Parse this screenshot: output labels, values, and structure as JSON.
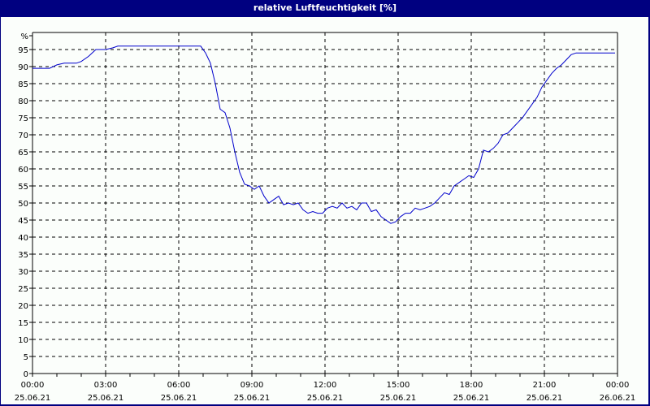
{
  "window": {
    "title": "relative Luftfeuchtigkeit [%]"
  },
  "colors": {
    "frame": "#000080",
    "background": "#fbfefb",
    "line": "#0000cc",
    "grid": "#000000"
  },
  "chart_data": {
    "type": "line",
    "title": "relative Luftfeuchtigkeit [%]",
    "xlabel": "",
    "ylabel": "%",
    "ylim": [
      0,
      100
    ],
    "xlim_hours": [
      0,
      24
    ],
    "grid": true,
    "y_ticks": [
      "0",
      "5",
      "10",
      "15",
      "20",
      "25",
      "30",
      "35",
      "40",
      "45",
      "50",
      "55",
      "60",
      "65",
      "70",
      "75",
      "80",
      "85",
      "90",
      "95",
      "%"
    ],
    "x_ticks": [
      {
        "time": "00:00",
        "date": "25.06.21"
      },
      {
        "time": "03:00",
        "date": "25.06.21"
      },
      {
        "time": "06:00",
        "date": "25.06.21"
      },
      {
        "time": "09:00",
        "date": "25.06.21"
      },
      {
        "time": "12:00",
        "date": "25.06.21"
      },
      {
        "time": "15:00",
        "date": "25.06.21"
      },
      {
        "time": "18:00",
        "date": "25.06.21"
      },
      {
        "time": "21:00",
        "date": "25.06.21"
      },
      {
        "time": "00:00",
        "date": "26.06.21"
      }
    ],
    "series": [
      {
        "name": "relative Luftfeuchtigkeit",
        "x_hours": [
          0,
          0.7,
          1.0,
          1.3,
          1.8,
          2.0,
          2.3,
          2.6,
          3.0,
          3.3,
          3.5,
          4.5,
          5.5,
          6.0,
          6.5,
          6.9,
          7.1,
          7.3,
          7.5,
          7.7,
          7.9,
          8.1,
          8.3,
          8.5,
          8.7,
          8.9,
          9.1,
          9.3,
          9.5,
          9.7,
          9.9,
          10.1,
          10.3,
          10.5,
          10.7,
          10.9,
          11.1,
          11.3,
          11.5,
          11.7,
          11.9,
          12.1,
          12.3,
          12.5,
          12.7,
          12.9,
          13.1,
          13.3,
          13.5,
          13.7,
          13.9,
          14.1,
          14.3,
          14.5,
          14.7,
          14.9,
          15.1,
          15.3,
          15.5,
          15.7,
          15.9,
          16.1,
          16.3,
          16.5,
          16.7,
          16.9,
          17.1,
          17.3,
          17.5,
          17.7,
          17.9,
          18.1,
          18.3,
          18.5,
          18.7,
          18.9,
          19.1,
          19.3,
          19.5,
          19.7,
          19.9,
          20.1,
          20.3,
          20.5,
          20.7,
          20.9,
          21.1,
          21.3,
          21.5,
          21.7,
          21.9,
          22.1,
          22.3,
          22.5,
          22.7,
          22.9,
          23.1,
          23.3,
          23.5,
          23.7,
          23.9
        ],
        "values": [
          89.5,
          89.5,
          90.5,
          91,
          91,
          91.5,
          93,
          95,
          95,
          95.5,
          96,
          96,
          96,
          96,
          96,
          96,
          94,
          91,
          85,
          77.5,
          76.5,
          72,
          65,
          59,
          55.5,
          55,
          54,
          55,
          52,
          50,
          51,
          52,
          49.5,
          50,
          49.5,
          50,
          48,
          47,
          47.5,
          47,
          47,
          48.5,
          49,
          48.5,
          50,
          48.5,
          49,
          48,
          50,
          50,
          47.5,
          48,
          46,
          45,
          44,
          44.5,
          46,
          47,
          47,
          48.5,
          48,
          48.5,
          49,
          50,
          51.5,
          53,
          52.5,
          55,
          56,
          57,
          58,
          57.5,
          60,
          65.5,
          65,
          66,
          67.5,
          70,
          70.5,
          72,
          73.5,
          75,
          77,
          79,
          81,
          84,
          86,
          88,
          89.5,
          90.5,
          92,
          93.5,
          94,
          94,
          94,
          94,
          94,
          94,
          94,
          94,
          94
        ]
      }
    ]
  }
}
